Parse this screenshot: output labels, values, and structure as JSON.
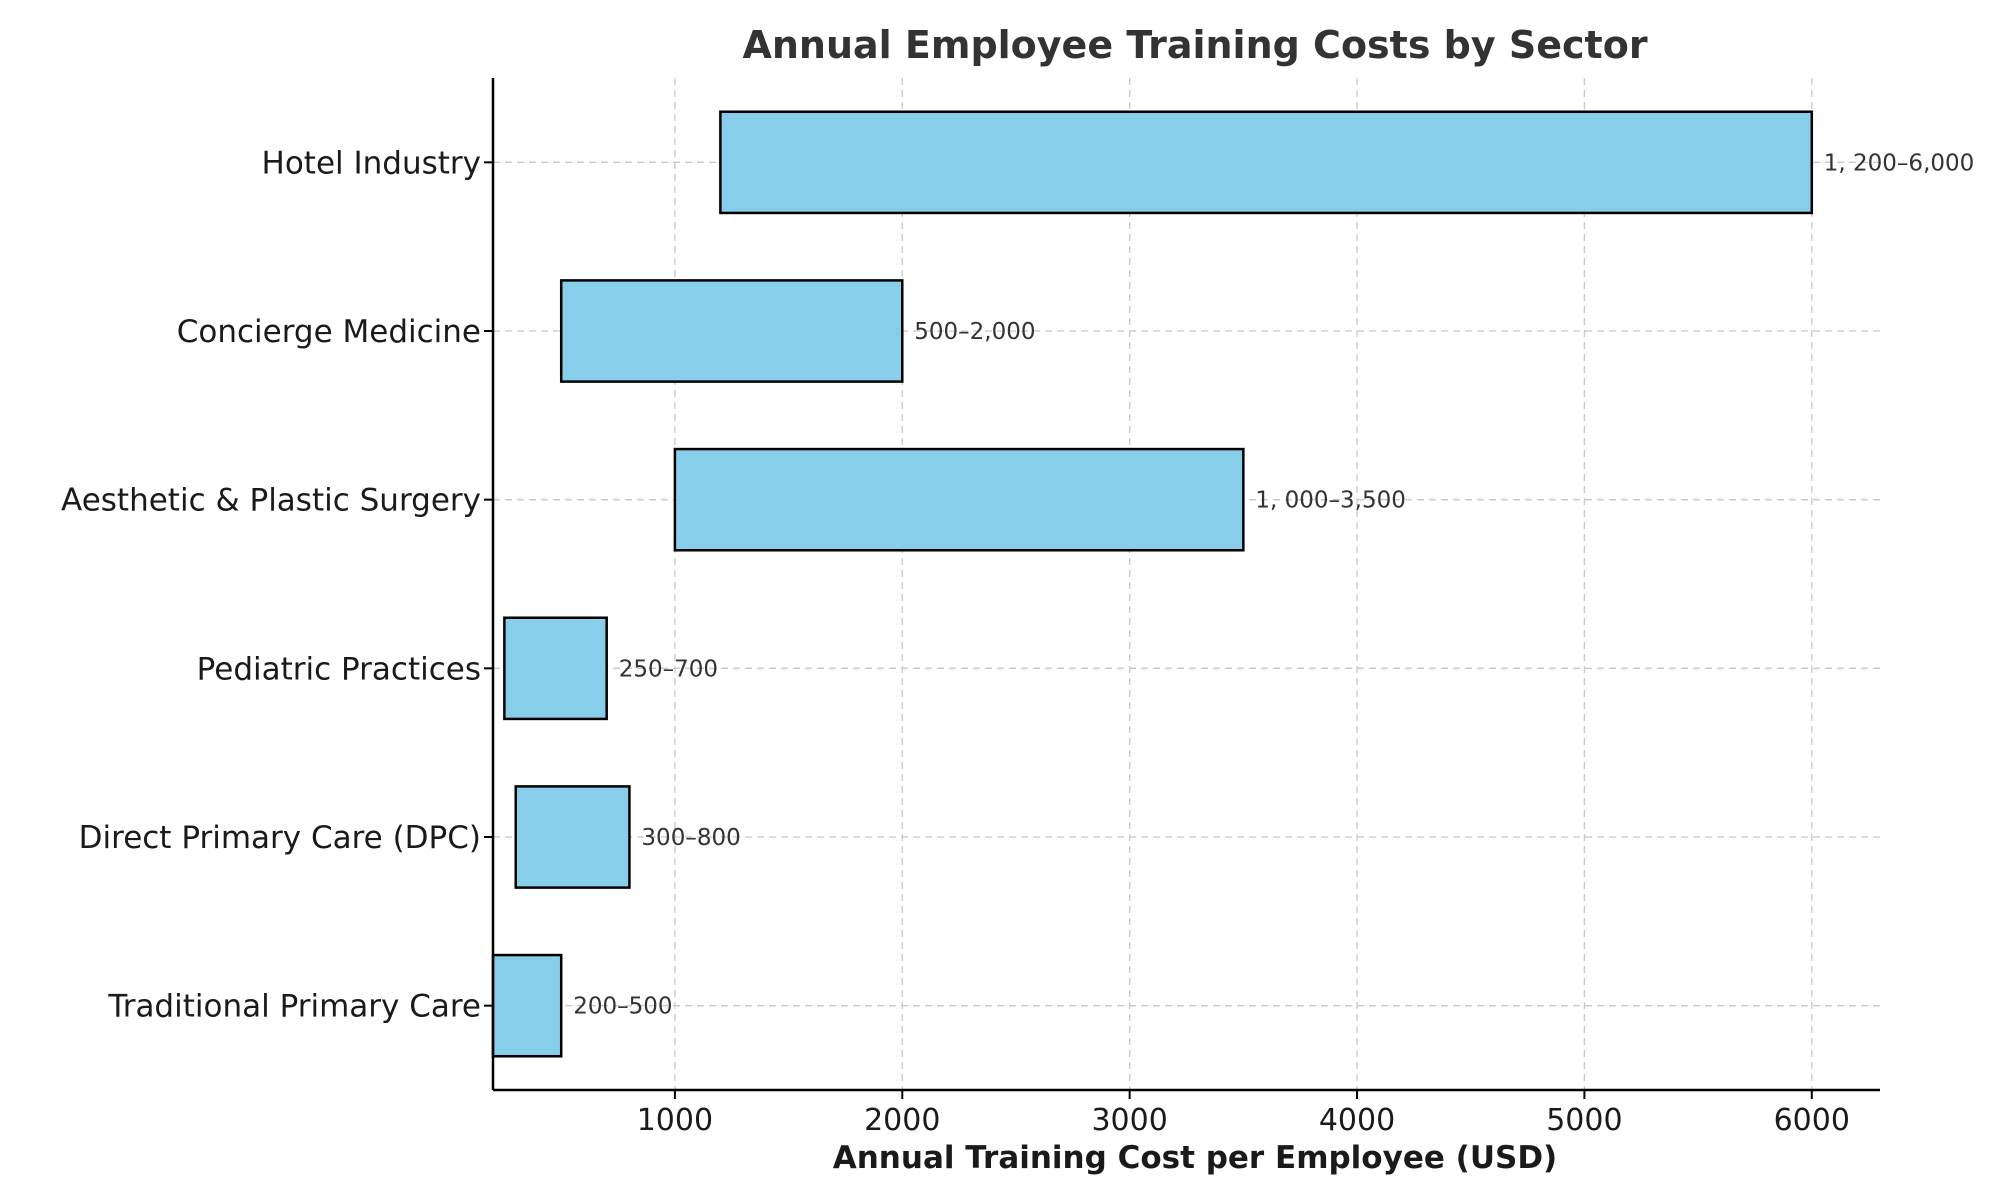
{
  "chart_data": {
    "type": "bar",
    "orientation": "horizontal",
    "title": "Annual Employee Training Costs by Sector",
    "xlabel": "Annual Training Cost per Employee (USD)",
    "ylabel": "",
    "xlim": [
      200,
      6300
    ],
    "xticks": [
      1000,
      2000,
      3000,
      4000,
      5000,
      6000
    ],
    "xtick_labels": [
      "1000",
      "2000",
      "3000",
      "4000",
      "5000",
      "6000"
    ],
    "grid": true,
    "bar_color": "#87CEEB",
    "edge_color": "#000000",
    "categories": [
      "Hotel Industry",
      "Concierge Medicine",
      "Aesthetic & Plastic Surgery",
      "Pediatric Practices",
      "Direct Primary Care (DPC)",
      "Traditional Primary Care"
    ],
    "ranges": [
      {
        "min": 1200,
        "max": 6000,
        "label": "1, 200–6,000"
      },
      {
        "min": 500,
        "max": 2000,
        "label": "500–2,000"
      },
      {
        "min": 1000,
        "max": 3500,
        "label": "1, 000–3,500"
      },
      {
        "min": 250,
        "max": 700,
        "label": "250–700"
      },
      {
        "min": 300,
        "max": 800,
        "label": "300–800"
      },
      {
        "min": 200,
        "max": 500,
        "label": "200–500"
      }
    ]
  }
}
